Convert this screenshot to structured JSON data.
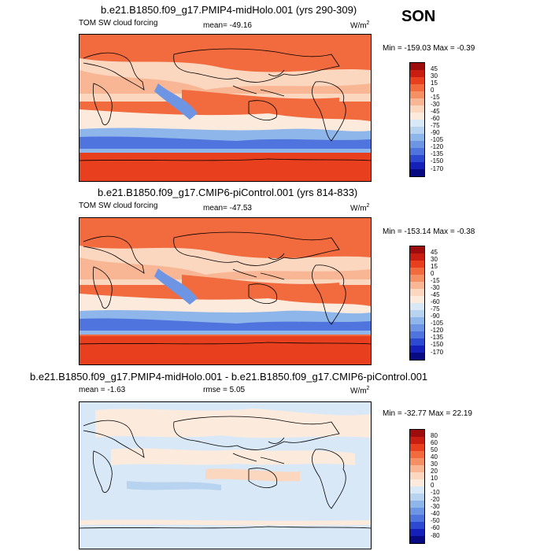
{
  "season": "SON",
  "panels": [
    {
      "title": "b.e21.B1850.f09_g17.PMIP4-midHolo.001 (yrs 290-309)",
      "left_label": "TOM SW cloud forcing",
      "center_label": "mean= -49.16",
      "units": "W/m",
      "units_sup": "2",
      "minmax": "Min = -159.03 Max =  -0.39",
      "levels": [
        "45",
        "30",
        "15",
        "0",
        "-15",
        "-30",
        "-45",
        "-60",
        "-75",
        "-90",
        "-105",
        "-120",
        "-135",
        "-150",
        "-170"
      ],
      "colors": [
        "#9e0d0d",
        "#c81e12",
        "#e8401e",
        "#f26b3e",
        "#f59064",
        "#f8b694",
        "#fbd7c0",
        "#fcebdd",
        "#d9e8f7",
        "#b7d3f0",
        "#8fb6ea",
        "#6e95e4",
        "#4f74de",
        "#2c49cf",
        "#1520b8",
        "#070a80"
      ]
    },
    {
      "title": "b.e21.B1850.f09_g17.CMIP6-piControl.001 (yrs 814-833)",
      "left_label": "TOM SW cloud forcing",
      "center_label": "mean= -47.53",
      "units": "W/m",
      "units_sup": "2",
      "minmax": "Min = -153.14 Max =  -0.38",
      "levels": [
        "45",
        "30",
        "15",
        "0",
        "-15",
        "-30",
        "-45",
        "-60",
        "-75",
        "-90",
        "-105",
        "-120",
        "-135",
        "-150",
        "-170"
      ],
      "colors": [
        "#9e0d0d",
        "#c81e12",
        "#e8401e",
        "#f26b3e",
        "#f59064",
        "#f8b694",
        "#fbd7c0",
        "#fcebdd",
        "#d9e8f7",
        "#b7d3f0",
        "#8fb6ea",
        "#6e95e4",
        "#4f74de",
        "#2c49cf",
        "#1520b8",
        "#070a80"
      ]
    },
    {
      "title": "b.e21.B1850.f09_g17.PMIP4-midHolo.001 - b.e21.B1850.f09_g17.CMIP6-piControl.001",
      "left_label": "mean =  -1.63",
      "center_label": "rmse =   5.05",
      "units": "W/m",
      "units_sup": "2",
      "minmax": "Min = -32.77 Max =  22.19",
      "levels": [
        "80",
        "60",
        "50",
        "40",
        "30",
        "20",
        "10",
        "0",
        "-10",
        "-20",
        "-30",
        "-40",
        "-50",
        "-60",
        "-80"
      ],
      "colors": [
        "#9e0d0d",
        "#c81e12",
        "#e8401e",
        "#f26b3e",
        "#f59064",
        "#f8b694",
        "#fbd7c0",
        "#fcebdd",
        "#d9e8f7",
        "#b7d3f0",
        "#8fb6ea",
        "#6e95e4",
        "#4f74de",
        "#2c49cf",
        "#1520b8",
        "#070a80"
      ]
    }
  ]
}
